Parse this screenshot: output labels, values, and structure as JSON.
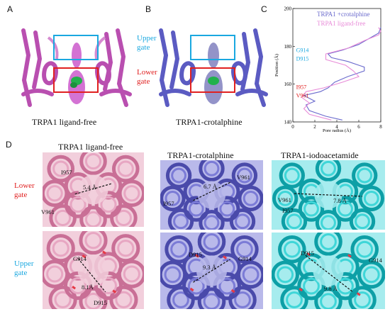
{
  "panel_letters": {
    "a": "A",
    "b": "B",
    "c": "C",
    "d": "D"
  },
  "panel_a": {
    "caption": "TRPA1 ligand-free",
    "upper_gate": "Upper gate",
    "lower_gate": "Lower gate"
  },
  "panel_b": {
    "caption": "TRPA1-crotalphine"
  },
  "panel_d": {
    "col1": {
      "title": "TRPA1 ligand-free",
      "lower_gate_label": "Lower gate",
      "upper_gate_label": "Upper gate",
      "lower": {
        "res_top": "I957",
        "res_side": "V961",
        "distance": "5.4 Å"
      },
      "upper": {
        "res_top": "G914",
        "res_bottom": "D915",
        "distance": "8.1Å"
      }
    },
    "col2": {
      "title": "TRPA1-crotalphine",
      "lower": {
        "res_top": "V961",
        "res_side": "I957",
        "distance": "6.7 Å"
      },
      "upper": {
        "res_top": "D915",
        "res_side": "G914",
        "distance": "9.3 Å"
      }
    },
    "col3": {
      "title": "TRPA1-iodoacetamide",
      "lower": {
        "res_top": "V961",
        "res_side": "I957",
        "distance": "7.8 Å"
      },
      "upper": {
        "res_top": "D915",
        "res_side": "G914",
        "distance": "9.8 Å"
      }
    }
  },
  "colors": {
    "pink": "#c25bb8",
    "light_pink": "#e29ab7",
    "blue": "#6a6acd",
    "cyan": "#21c2c8",
    "upper_gate": "#1aa8e0",
    "lower_gate": "#e02020",
    "green_ligand": "#22b14c"
  },
  "chart_data": {
    "type": "line",
    "xlabel": "Pore radius (Å)",
    "ylabel": "Position (Å)",
    "xlim": [
      0,
      8
    ],
    "ylim": [
      140,
      200
    ],
    "xticks": [
      "0",
      "2",
      "4",
      "6",
      "8"
    ],
    "yticks": [
      "140",
      "160",
      "180",
      "200"
    ],
    "legend_position": "top-right",
    "annotations": [
      {
        "text": "G914",
        "color": "#1aa8e0"
      },
      {
        "text": "D915",
        "color": "#1aa8e0"
      },
      {
        "text": "I957",
        "color": "#e02020"
      },
      {
        "text": "V961",
        "color": "#e02020"
      }
    ],
    "series": [
      {
        "name": "TRPA1 +crotalphine",
        "color": "#6a6acd",
        "points": [
          [
            4.5,
            141
          ],
          [
            3.0,
            143
          ],
          [
            1.5,
            146
          ],
          [
            1.2,
            149
          ],
          [
            2.0,
            151
          ],
          [
            1.0,
            154
          ],
          [
            2.5,
            156
          ],
          [
            3.2,
            158
          ],
          [
            3.8,
            161
          ],
          [
            5.0,
            164
          ],
          [
            6.5,
            167
          ],
          [
            6.5,
            169
          ],
          [
            5.0,
            172
          ],
          [
            3.5,
            174
          ],
          [
            3.2,
            176
          ],
          [
            4.5,
            178
          ],
          [
            6.0,
            181
          ],
          [
            7.2,
            185
          ],
          [
            7.8,
            187
          ],
          [
            8.0,
            190
          ]
        ]
      },
      {
        "name": "TRPA1 ligand-free",
        "color": "#e88bd8",
        "points": [
          [
            3.5,
            141
          ],
          [
            1.5,
            144
          ],
          [
            1.0,
            147
          ],
          [
            1.5,
            150
          ],
          [
            0.8,
            153
          ],
          [
            1.2,
            156
          ],
          [
            2.8,
            158
          ],
          [
            4.5,
            161
          ],
          [
            6.0,
            164
          ],
          [
            5.5,
            167
          ],
          [
            4.8,
            170
          ],
          [
            3.0,
            173
          ],
          [
            3.0,
            176
          ],
          [
            5.0,
            179
          ],
          [
            6.5,
            183
          ],
          [
            7.8,
            186
          ],
          [
            8.0,
            188
          ],
          [
            7.8,
            190
          ]
        ]
      }
    ]
  }
}
